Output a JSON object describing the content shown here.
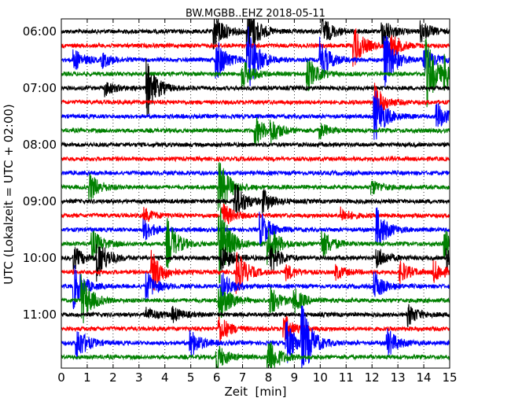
{
  "chart_data": {
    "type": "line",
    "title": "BW.MGBB..EHZ 2018-05-11",
    "xlabel": "Zeit  [min]",
    "ylabel": "UTC (Lokalzeit = UTC + 02:00)",
    "xlim": [
      0,
      15
    ],
    "x_ticks": [
      "0",
      "1",
      "2",
      "3",
      "4",
      "5",
      "6",
      "7",
      "8",
      "9",
      "10",
      "11",
      "12",
      "13",
      "14",
      "15"
    ],
    "y_ticks": [
      "06:00",
      "07:00",
      "08:00",
      "09:00",
      "10:00",
      "11:00"
    ],
    "grid": "vertical dotted",
    "trace_colors": [
      "#000000",
      "#ff0000",
      "#0000ff",
      "#008000"
    ],
    "traces": [
      {
        "time": "06:00",
        "color": "#000000",
        "events": [
          [
            5.9,
            3.0
          ],
          [
            7.2,
            4.0
          ],
          [
            10.1,
            2.0
          ],
          [
            12.4,
            2.0
          ],
          [
            13.9,
            1.5
          ]
        ]
      },
      {
        "time": "06:15",
        "color": "#ff0000",
        "events": [
          [
            11.3,
            3.0
          ],
          [
            12.7,
            2.0
          ]
        ]
      },
      {
        "time": "06:30",
        "color": "#0000ff",
        "events": [
          [
            0.5,
            1.5
          ],
          [
            1.6,
            1.0
          ],
          [
            6.0,
            3.0
          ],
          [
            7.2,
            5.0
          ],
          [
            10.0,
            3.0
          ],
          [
            12.5,
            4.0
          ],
          [
            14.0,
            2.0
          ]
        ]
      },
      {
        "time": "06:45",
        "color": "#008000",
        "events": [
          [
            7.0,
            2.0
          ],
          [
            9.5,
            2.5
          ],
          [
            14.1,
            5.0
          ],
          [
            14.8,
            2.0
          ]
        ]
      },
      {
        "time": "07:00",
        "color": "#000000",
        "events": [
          [
            1.7,
            1.0
          ],
          [
            3.3,
            4.0
          ]
        ]
      },
      {
        "time": "07:15",
        "color": "#ff0000",
        "events": [
          [
            12.1,
            2.5
          ]
        ]
      },
      {
        "time": "07:30",
        "color": "#0000ff",
        "events": [
          [
            12.1,
            4.0
          ],
          [
            14.5,
            2.0
          ]
        ]
      },
      {
        "time": "07:45",
        "color": "#008000",
        "events": [
          [
            7.5,
            2.0
          ],
          [
            8.1,
            1.5
          ],
          [
            10.0,
            1.0
          ]
        ]
      },
      {
        "time": "08:00",
        "color": "#000000",
        "events": []
      },
      {
        "time": "08:15",
        "color": "#ff0000",
        "events": []
      },
      {
        "time": "08:30",
        "color": "#0000ff",
        "events": []
      },
      {
        "time": "08:45",
        "color": "#008000",
        "events": [
          [
            1.1,
            2.0
          ],
          [
            6.1,
            4.0
          ],
          [
            12.0,
            1.0
          ]
        ]
      },
      {
        "time": "09:00",
        "color": "#000000",
        "events": [
          [
            6.7,
            3.0
          ],
          [
            7.8,
            1.5
          ]
        ]
      },
      {
        "time": "09:15",
        "color": "#ff0000",
        "events": [
          [
            3.2,
            1.0
          ],
          [
            6.2,
            2.0
          ],
          [
            10.8,
            1.0
          ]
        ]
      },
      {
        "time": "09:30",
        "color": "#0000ff",
        "events": [
          [
            3.2,
            1.5
          ],
          [
            7.7,
            2.5
          ],
          [
            12.2,
            3.0
          ]
        ]
      },
      {
        "time": "09:45",
        "color": "#008000",
        "events": [
          [
            1.2,
            2.0
          ],
          [
            4.1,
            3.5
          ],
          [
            6.1,
            6.0
          ],
          [
            8.0,
            3.0
          ],
          [
            10.1,
            2.0
          ],
          [
            14.8,
            2.0
          ]
        ]
      },
      {
        "time": "10:00",
        "color": "#000000",
        "events": [
          [
            0.5,
            1.5
          ],
          [
            1.4,
            3.0
          ],
          [
            6.2,
            2.0
          ],
          [
            8.1,
            2.0
          ],
          [
            12.2,
            1.5
          ],
          [
            14.9,
            1.5
          ]
        ]
      },
      {
        "time": "10:15",
        "color": "#ff0000",
        "events": [
          [
            3.5,
            3.0
          ],
          [
            6.8,
            3.0
          ],
          [
            8.7,
            1.0
          ],
          [
            10.6,
            1.0
          ],
          [
            13.1,
            1.5
          ],
          [
            14.4,
            1.5
          ]
        ]
      },
      {
        "time": "10:30",
        "color": "#0000ff",
        "events": [
          [
            0.5,
            3.0
          ],
          [
            3.3,
            2.0
          ],
          [
            6.2,
            2.0
          ],
          [
            12.1,
            2.0
          ]
        ]
      },
      {
        "time": "10:45",
        "color": "#008000",
        "events": [
          [
            0.8,
            3.5
          ],
          [
            6.1,
            3.0
          ],
          [
            8.1,
            2.0
          ],
          [
            9.0,
            1.5
          ]
        ]
      },
      {
        "time": "11:00",
        "color": "#000000",
        "events": [
          [
            3.3,
            1.0
          ],
          [
            4.3,
            1.0
          ],
          [
            13.4,
            1.5
          ]
        ]
      },
      {
        "time": "11:15",
        "color": "#ff0000",
        "events": [
          [
            6.1,
            2.0
          ],
          [
            8.6,
            2.0
          ]
        ]
      },
      {
        "time": "11:30",
        "color": "#0000ff",
        "events": [
          [
            0.6,
            2.5
          ],
          [
            5.0,
            2.0
          ],
          [
            8.7,
            3.0
          ],
          [
            9.3,
            5.0
          ],
          [
            12.6,
            2.0
          ]
        ]
      },
      {
        "time": "11:45",
        "color": "#008000",
        "events": [
          [
            6.0,
            2.0
          ],
          [
            8.0,
            3.0
          ]
        ]
      }
    ]
  }
}
